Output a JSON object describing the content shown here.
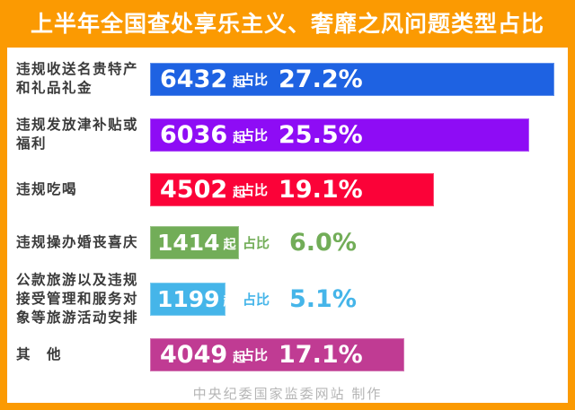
{
  "title": "上半年全国查处享乐主义、奢靡之风问题类型占比",
  "footer": "中央纪委国家监委网站 制作",
  "unit_label": "起",
  "share_label": "占比",
  "colors": {
    "frame_orange": "#FB9A02",
    "label_text": "#3A3A3A",
    "footer_text": "#B5B5B5",
    "bar_blue": "#1E62E2",
    "bar_purple": "#8E0CF5",
    "bar_red": "#FB0238",
    "bar_green": "#72AD58",
    "bar_lightblue": "#45B5E9",
    "bar_magenta": "#C03B93"
  },
  "chart_data": {
    "type": "bar",
    "orientation": "horizontal",
    "title": "上半年全国查处享乐主义、奢靡之风问题类型占比",
    "categories": [
      "违规收送名贵特产和礼品礼金",
      "违规发放津补贴或福利",
      "违规吃喝",
      "违规操办婚丧喜庆",
      "公款旅游以及违规接受管理和服务对象等旅游活动安排",
      "其他"
    ],
    "series": [
      {
        "name": "起数",
        "values": [
          6432,
          6036,
          4502,
          1414,
          1199,
          4049
        ]
      },
      {
        "name": "占比(%)",
        "values": [
          27.2,
          25.5,
          19.1,
          6.0,
          5.1,
          17.1
        ]
      }
    ],
    "bar_colors": [
      "#1E62E2",
      "#8E0CF5",
      "#FB0238",
      "#72AD58",
      "#45B5E9",
      "#C03B93"
    ],
    "xlim": [
      0,
      28.1
    ],
    "grid": false,
    "legend": "none",
    "value_label_format": "{count} 起  占比 {percent}%"
  },
  "rows": [
    {
      "label_lines": [
        "违规收送名贵特产",
        "和礼品礼金"
      ],
      "count": "6432",
      "percent_text": "27.2%",
      "percent_value": 27.2,
      "color": "#1E62E2",
      "value_inside": true
    },
    {
      "label_lines": [
        "违规发放津补贴或",
        "福利"
      ],
      "count": "6036",
      "percent_text": "25.5%",
      "percent_value": 25.5,
      "color": "#8E0CF5",
      "value_inside": true
    },
    {
      "label_lines": [
        "违规吃喝"
      ],
      "count": "4502",
      "percent_text": "19.1%",
      "percent_value": 19.1,
      "color": "#FB0238",
      "value_inside": true
    },
    {
      "label_lines": [
        "违规操办婚丧喜庆"
      ],
      "count": "1414",
      "percent_text": "6.0%",
      "percent_value": 6.0,
      "color": "#72AD58",
      "value_inside": false
    },
    {
      "label_lines": [
        "公款旅游以及违规",
        "接受管理和服务对",
        "象等旅游活动安排"
      ],
      "count": "1199",
      "percent_text": "5.1%",
      "percent_value": 5.1,
      "color": "#45B5E9",
      "value_inside": false
    },
    {
      "label_lines": [
        "其　他"
      ],
      "count": "4049",
      "percent_text": "17.1%",
      "percent_value": 17.1,
      "color": "#C03B93",
      "value_inside": true
    }
  ]
}
